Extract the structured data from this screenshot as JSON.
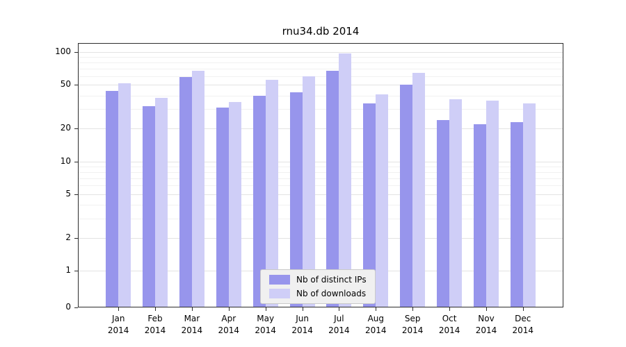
{
  "chart_data": {
    "type": "bar",
    "title": "rnu34.db 2014",
    "year": "2014",
    "categories": [
      "Jan",
      "Feb",
      "Mar",
      "Apr",
      "May",
      "Jun",
      "Jul",
      "Aug",
      "Sep",
      "Oct",
      "Nov",
      "Dec"
    ],
    "series": [
      {
        "name": "Nb of distinct IPs",
        "color": "#9795ec",
        "values": [
          44,
          32,
          59,
          31,
          40,
          43,
          67,
          34,
          50,
          24,
          22,
          23
        ]
      },
      {
        "name": "Nb of downloads",
        "color": "#cfcef7",
        "values": [
          52,
          38,
          67,
          35,
          56,
          60,
          97,
          41,
          65,
          37,
          36,
          34
        ]
      }
    ],
    "yscale": "log",
    "yticks": [
      0,
      1,
      2,
      5,
      10,
      20,
      50,
      100
    ],
    "minor_gridlines": [
      3,
      4,
      6,
      7,
      8,
      9,
      30,
      40,
      60,
      70,
      80,
      90
    ],
    "ylim": [
      0,
      110
    ],
    "grid": "horizontal",
    "legend_position": "lower center",
    "background": "#ffffff"
  }
}
